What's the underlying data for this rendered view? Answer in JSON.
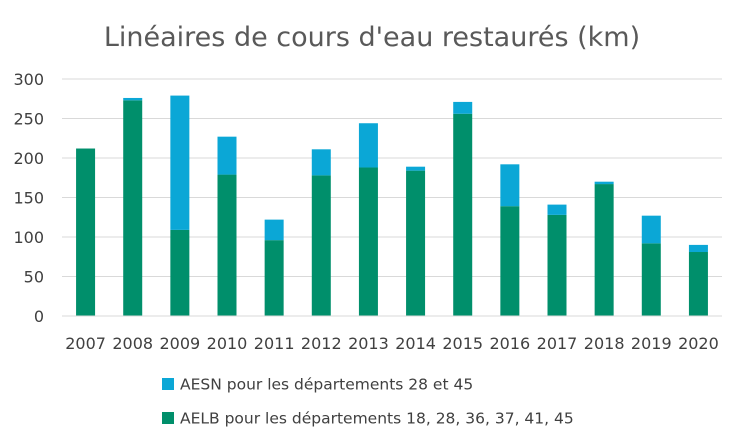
{
  "chart_data": {
    "type": "bar",
    "stacked": true,
    "title": "Linéaires de cours d'eau restaurés (km)",
    "xlabel": "",
    "ylabel": "",
    "ylim": [
      0,
      300
    ],
    "yticks": [
      0,
      50,
      100,
      150,
      200,
      250,
      300
    ],
    "grid": true,
    "legend_position": "bottom",
    "categories": [
      "2007",
      "2008",
      "2009",
      "2010",
      "2011",
      "2012",
      "2013",
      "2014",
      "2015",
      "2016",
      "2017",
      "2018",
      "2019",
      "2020"
    ],
    "series": [
      {
        "name": "AELB pour les départements 18, 28, 36, 37, 41, 45",
        "color": "#008F6B",
        "values": [
          212,
          273,
          109,
          179,
          96,
          178,
          188,
          184,
          256,
          139,
          128,
          167,
          92,
          81
        ]
      },
      {
        "name": "AESN pour les départements 28 et 45",
        "color": "#0BA7D6",
        "values": [
          0,
          3,
          170,
          48,
          26,
          33,
          56,
          5,
          15,
          53,
          13,
          3,
          35,
          9
        ]
      }
    ]
  }
}
